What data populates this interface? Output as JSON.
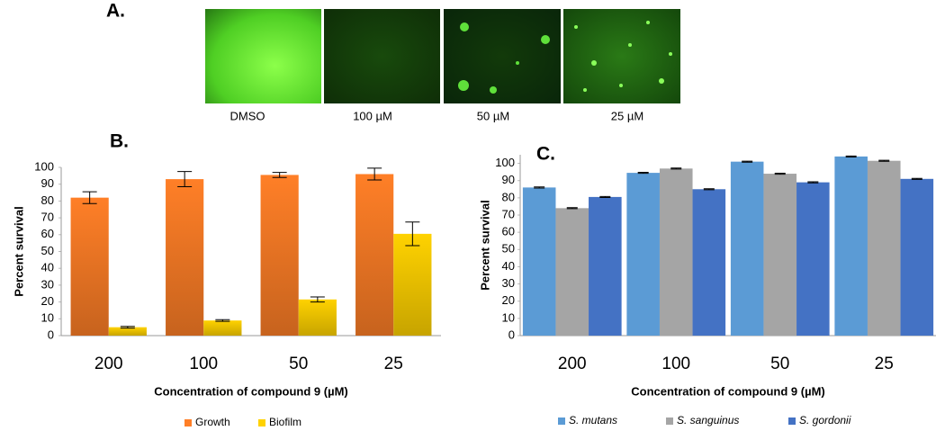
{
  "panel_a": {
    "label": "A.",
    "captions": [
      "DMSO",
      "100 µM",
      "50 µM",
      "25 µM"
    ]
  },
  "chart_data": [
    {
      "type": "bar",
      "panel": "B.",
      "y_label": "Percent survival",
      "x_label": "Concentration of compound 9 (µM)",
      "categories": [
        "200",
        "100",
        "50",
        "25"
      ],
      "series": [
        {
          "name": "Growth",
          "color": "#ff7f27",
          "values": [
            82,
            93,
            95.5,
            96
          ],
          "errors": [
            3.5,
            4.5,
            1.5,
            3.5
          ]
        },
        {
          "name": "Biofilm",
          "color": "#ffd200",
          "values": [
            5,
            9,
            21.5,
            60.5
          ],
          "errors": [
            0.5,
            0.5,
            1.5,
            7
          ]
        }
      ],
      "ylim": [
        0,
        100
      ],
      "yticks": [
        0,
        10,
        20,
        30,
        40,
        50,
        60,
        70,
        80,
        90,
        100
      ],
      "grid": false,
      "legend": "bottom"
    },
    {
      "type": "bar",
      "panel": "C.",
      "y_label": "Percent survival",
      "x_label": "Concentration of compound 9 (µM)",
      "categories": [
        "200",
        "100",
        "50",
        "25"
      ],
      "series": [
        {
          "name": "S. mutans",
          "color": "#5b9bd5",
          "values": [
            86,
            94.5,
            101,
            104
          ],
          "errors": [
            0.3,
            0.3,
            0.3,
            0.3
          ]
        },
        {
          "name": "S. sanguinus",
          "color": "#a5a5a5",
          "values": [
            74,
            97,
            94,
            101.5
          ],
          "errors": [
            0.3,
            0.3,
            0.3,
            0.3
          ]
        },
        {
          "name": "S. gordonii",
          "color": "#4472c4",
          "values": [
            80.5,
            85,
            89,
            91
          ],
          "errors": [
            0.3,
            0.3,
            0.3,
            0.3
          ]
        }
      ],
      "ylim": [
        0,
        105
      ],
      "yticks": [
        0,
        10,
        20,
        30,
        40,
        50,
        60,
        70,
        80,
        90,
        100
      ],
      "grid": false,
      "legend": "bottom"
    }
  ]
}
